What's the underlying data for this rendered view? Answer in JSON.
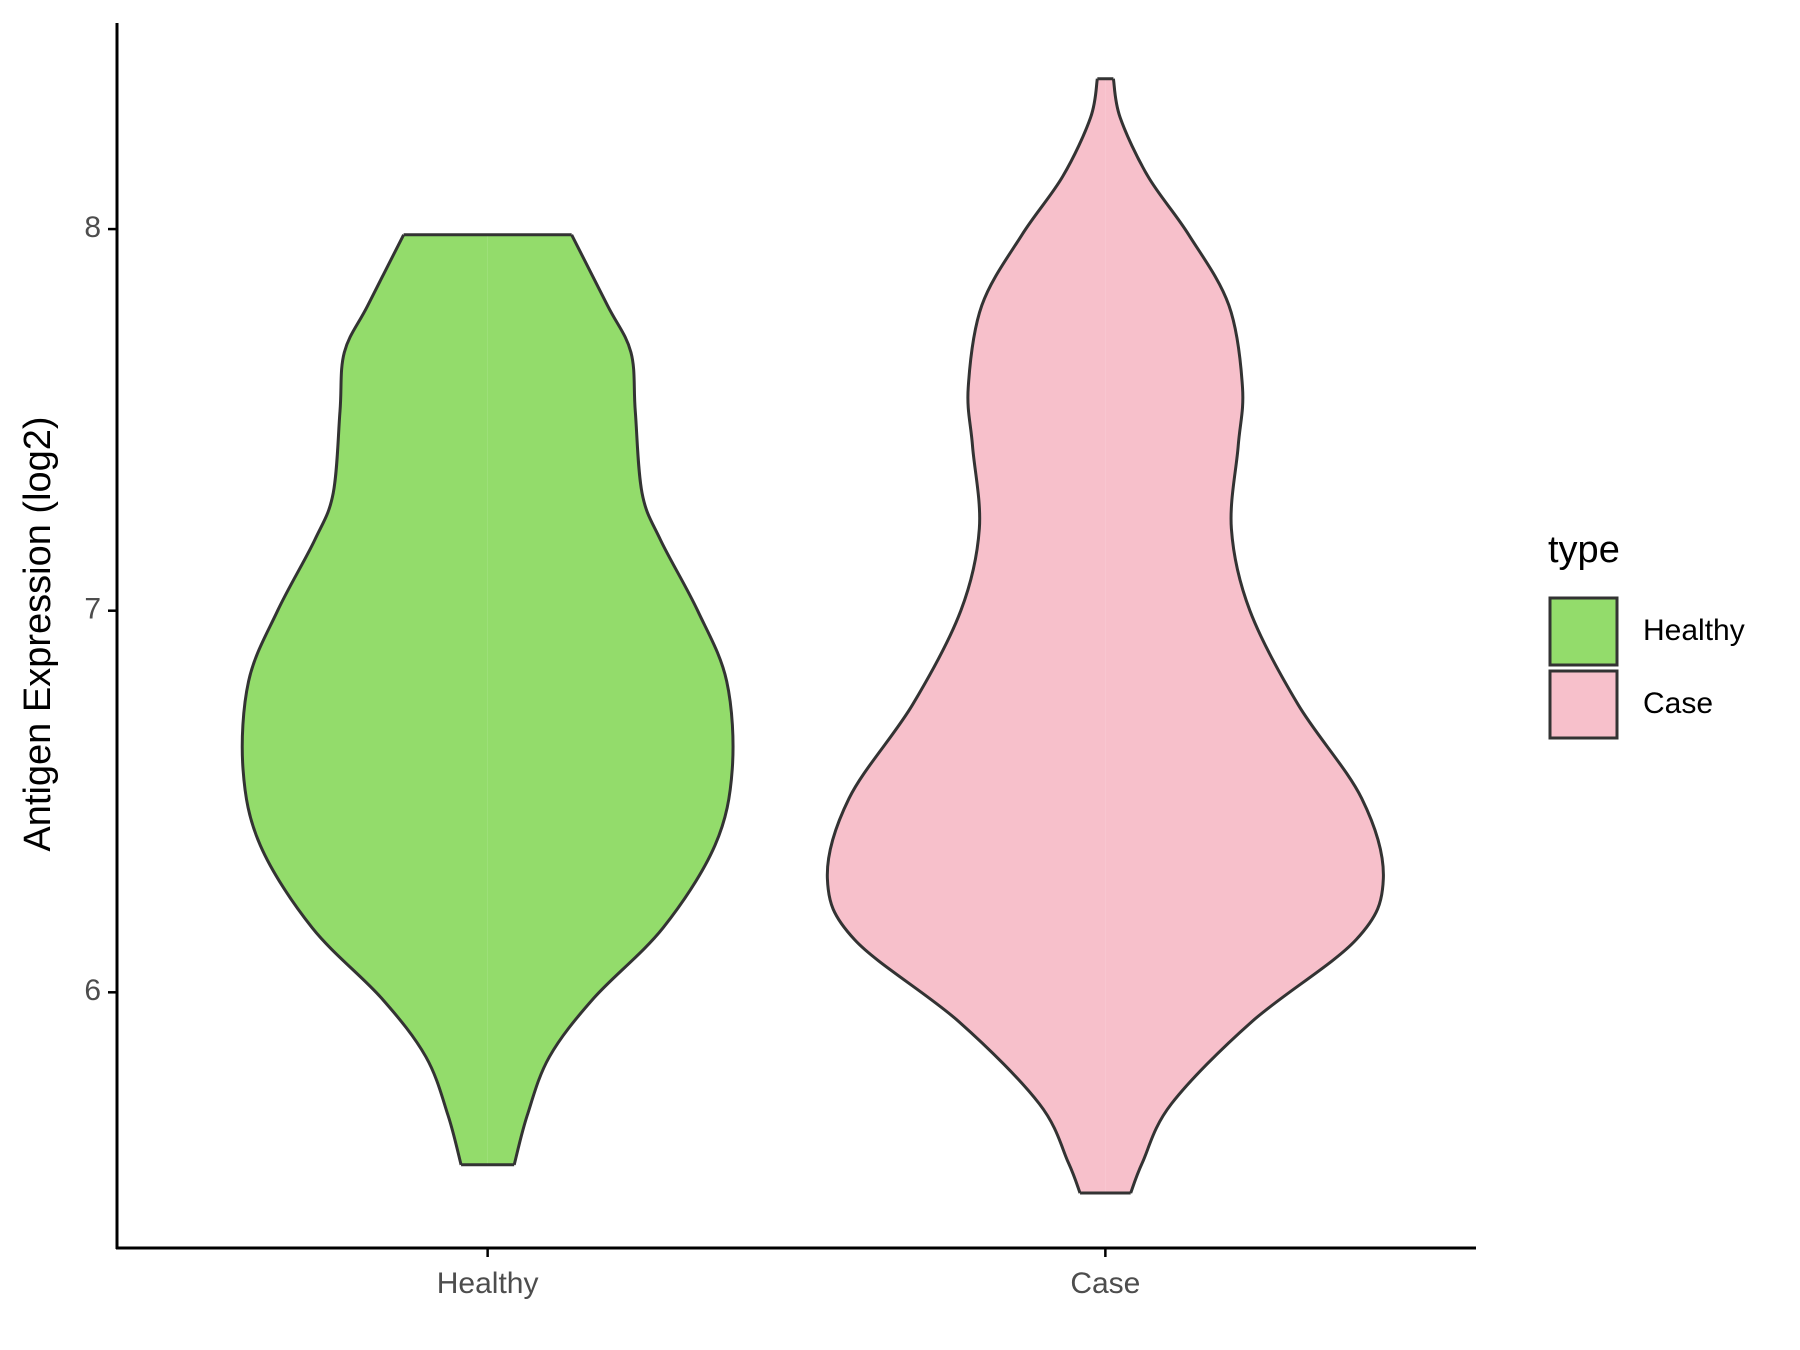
{
  "chart_data": {
    "type": "violin",
    "y_label": "Antigen Expression (log2)",
    "categories": [
      "Healthy",
      "Case"
    ],
    "legend_title": "type",
    "legend_position": "right",
    "ylim": [
      5.33,
      8.54
    ],
    "yticks": [
      6,
      7,
      8
    ],
    "series": [
      {
        "name": "Healthy",
        "color": "#93dc6b",
        "y": [
          7.985,
          7.8,
          7.677,
          7.523,
          7.308,
          7.185,
          7.0,
          6.815,
          6.585,
          6.385,
          6.169,
          5.985,
          5.831,
          5.677,
          5.548
        ],
        "half_width": [
          0.136,
          0.194,
          0.232,
          0.239,
          0.25,
          0.28,
          0.34,
          0.387,
          0.396,
          0.368,
          0.284,
          0.172,
          0.1,
          0.064,
          0.043
        ]
      },
      {
        "name": "Case",
        "color": "#f7c0cb",
        "y": [
          8.394,
          8.292,
          8.138,
          7.985,
          7.8,
          7.585,
          7.431,
          7.215,
          7.0,
          6.754,
          6.508,
          6.298,
          6.138,
          5.923,
          5.708,
          5.554,
          5.474
        ],
        "half_width": [
          0.013,
          0.024,
          0.069,
          0.135,
          0.2,
          0.222,
          0.215,
          0.204,
          0.234,
          0.312,
          0.415,
          0.45,
          0.406,
          0.237,
          0.107,
          0.06,
          0.041
        ]
      }
    ]
  }
}
